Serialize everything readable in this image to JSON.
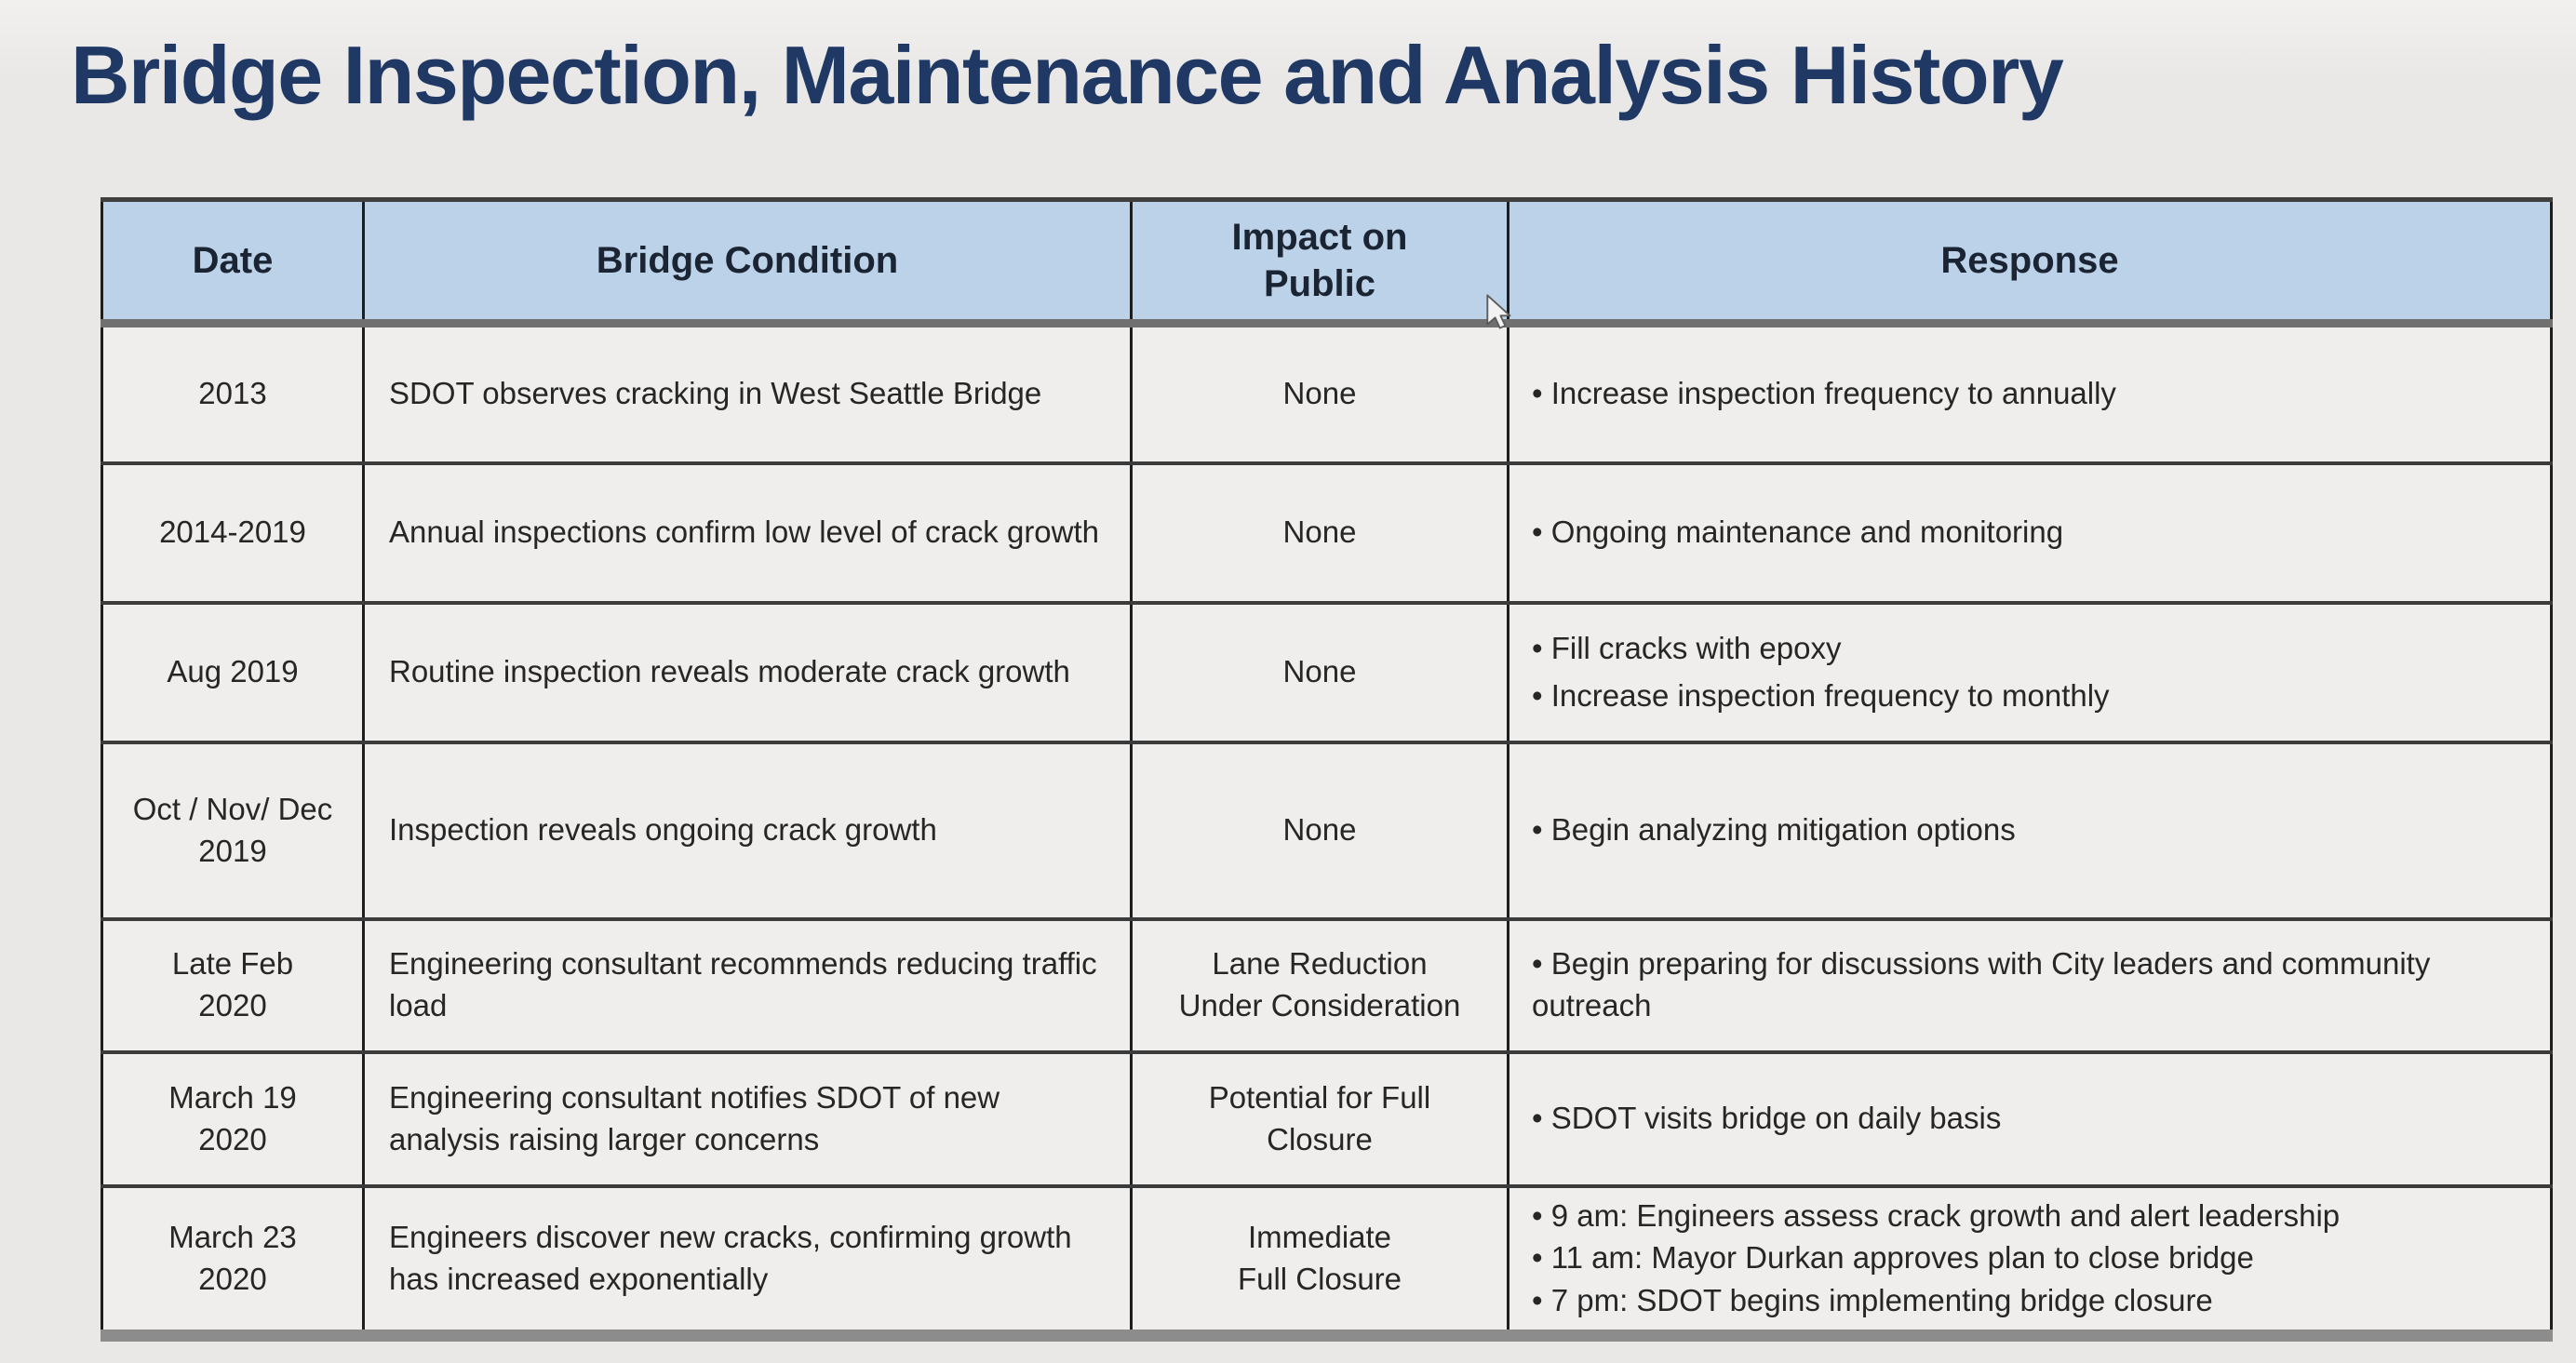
{
  "slide": {
    "title": "Bridge Inspection, Maintenance and Analysis History",
    "colors": {
      "background": "#e9e8e6",
      "title_text": "#1f3864",
      "header_fill": "#bcd2e8",
      "header_text": "#1b2433",
      "cell_fill": "#efeeec",
      "cell_text": "#262626",
      "grid_line": "#1e1e1e"
    },
    "icons": {
      "cursor": "mouse-pointer-icon"
    }
  },
  "table": {
    "columns": [
      "Date",
      "Bridge Condition",
      "Impact on Public",
      "Response"
    ],
    "rows": [
      {
        "date_lines": [
          "2013"
        ],
        "condition": "SDOT observes cracking in West Seattle Bridge",
        "impact_lines": [
          "None"
        ],
        "response": [
          "Increase inspection frequency to annually"
        ]
      },
      {
        "date_lines": [
          "2014-2019"
        ],
        "condition": "Annual inspections confirm low level of crack growth",
        "impact_lines": [
          "None"
        ],
        "response": [
          "Ongoing maintenance and monitoring"
        ]
      },
      {
        "date_lines": [
          "Aug 2019"
        ],
        "condition": "Routine inspection reveals moderate crack growth",
        "impact_lines": [
          "None"
        ],
        "response": [
          "Fill cracks with epoxy",
          "Increase inspection frequency to monthly"
        ]
      },
      {
        "date_lines": [
          "Oct / Nov/ Dec",
          "2019"
        ],
        "condition": "Inspection reveals ongoing crack growth",
        "impact_lines": [
          "None"
        ],
        "response": [
          "Begin analyzing mitigation options"
        ]
      },
      {
        "date_lines": [
          "Late Feb",
          "2020"
        ],
        "condition": "Engineering consultant recommends reducing traffic load",
        "impact_lines": [
          "Lane Reduction",
          "Under Consideration"
        ],
        "response": [
          "Begin preparing for discussions with City leaders and community outreach"
        ]
      },
      {
        "date_lines": [
          "March 19",
          "2020"
        ],
        "condition": "Engineering consultant notifies SDOT of new analysis raising larger concerns",
        "impact_lines": [
          "Potential for Full",
          "Closure"
        ],
        "response": [
          "SDOT visits bridge on daily basis"
        ]
      },
      {
        "date_lines": [
          "March 23",
          "2020"
        ],
        "condition": "Engineers discover new cracks, confirming growth has increased exponentially",
        "impact_lines": [
          "Immediate",
          "Full Closure"
        ],
        "response": [
          "9 am: Engineers assess crack growth and alert leadership",
          "11 am: Mayor Durkan approves plan to close bridge",
          "7 pm: SDOT begins implementing bridge closure"
        ]
      }
    ]
  }
}
